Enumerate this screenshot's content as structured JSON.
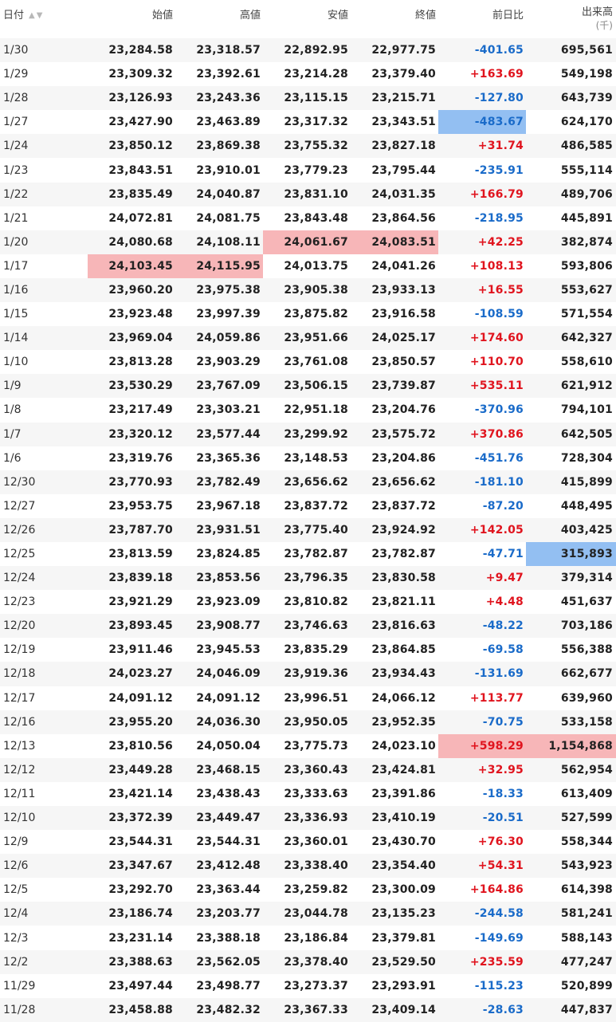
{
  "header": {
    "date": "日付",
    "open": "始値",
    "high": "高値",
    "low": "安値",
    "close": "終値",
    "change": "前日比",
    "volume": "出来高",
    "volume_unit": "(千)"
  },
  "colors": {
    "up": "#e0141e",
    "down": "#1a6bc9",
    "highlight_red": "#f7b6b8",
    "highlight_blue": "#93bff2"
  },
  "rows": [
    {
      "date": "1/30",
      "open": "23,284.58",
      "high": "23,318.57",
      "low": "22,892.95",
      "close": "22,977.75",
      "change": "-401.65",
      "volume": "695,561"
    },
    {
      "date": "1/29",
      "open": "23,309.32",
      "high": "23,392.61",
      "low": "23,214.28",
      "close": "23,379.40",
      "change": "+163.69",
      "volume": "549,198"
    },
    {
      "date": "1/28",
      "open": "23,126.93",
      "high": "23,243.36",
      "low": "23,115.15",
      "close": "23,215.71",
      "change": "-127.80",
      "volume": "643,739"
    },
    {
      "date": "1/27",
      "open": "23,427.90",
      "high": "23,463.89",
      "low": "23,317.32",
      "close": "23,343.51",
      "change": "-483.67",
      "volume": "624,170"
    },
    {
      "date": "1/24",
      "open": "23,850.12",
      "high": "23,869.38",
      "low": "23,755.32",
      "close": "23,827.18",
      "change": "+31.74",
      "volume": "486,585"
    },
    {
      "date": "1/23",
      "open": "23,843.51",
      "high": "23,910.01",
      "low": "23,779.23",
      "close": "23,795.44",
      "change": "-235.91",
      "volume": "555,114"
    },
    {
      "date": "1/22",
      "open": "23,835.49",
      "high": "24,040.87",
      "low": "23,831.10",
      "close": "24,031.35",
      "change": "+166.79",
      "volume": "489,706"
    },
    {
      "date": "1/21",
      "open": "24,072.81",
      "high": "24,081.75",
      "low": "23,843.48",
      "close": "23,864.56",
      "change": "-218.95",
      "volume": "445,891"
    },
    {
      "date": "1/20",
      "open": "24,080.68",
      "high": "24,108.11",
      "low": "24,061.67",
      "close": "24,083.51",
      "change": "+42.25",
      "volume": "382,874"
    },
    {
      "date": "1/17",
      "open": "24,103.45",
      "high": "24,115.95",
      "low": "24,013.75",
      "close": "24,041.26",
      "change": "+108.13",
      "volume": "593,806"
    },
    {
      "date": "1/16",
      "open": "23,960.20",
      "high": "23,975.38",
      "low": "23,905.38",
      "close": "23,933.13",
      "change": "+16.55",
      "volume": "553,627"
    },
    {
      "date": "1/15",
      "open": "23,923.48",
      "high": "23,997.39",
      "low": "23,875.82",
      "close": "23,916.58",
      "change": "-108.59",
      "volume": "571,554"
    },
    {
      "date": "1/14",
      "open": "23,969.04",
      "high": "24,059.86",
      "low": "23,951.66",
      "close": "24,025.17",
      "change": "+174.60",
      "volume": "642,327"
    },
    {
      "date": "1/10",
      "open": "23,813.28",
      "high": "23,903.29",
      "low": "23,761.08",
      "close": "23,850.57",
      "change": "+110.70",
      "volume": "558,610"
    },
    {
      "date": "1/9",
      "open": "23,530.29",
      "high": "23,767.09",
      "low": "23,506.15",
      "close": "23,739.87",
      "change": "+535.11",
      "volume": "621,912"
    },
    {
      "date": "1/8",
      "open": "23,217.49",
      "high": "23,303.21",
      "low": "22,951.18",
      "close": "23,204.76",
      "change": "-370.96",
      "volume": "794,101"
    },
    {
      "date": "1/7",
      "open": "23,320.12",
      "high": "23,577.44",
      "low": "23,299.92",
      "close": "23,575.72",
      "change": "+370.86",
      "volume": "642,505"
    },
    {
      "date": "1/6",
      "open": "23,319.76",
      "high": "23,365.36",
      "low": "23,148.53",
      "close": "23,204.86",
      "change": "-451.76",
      "volume": "728,304"
    },
    {
      "date": "12/30",
      "open": "23,770.93",
      "high": "23,782.49",
      "low": "23,656.62",
      "close": "23,656.62",
      "change": "-181.10",
      "volume": "415,899"
    },
    {
      "date": "12/27",
      "open": "23,953.75",
      "high": "23,967.18",
      "low": "23,837.72",
      "close": "23,837.72",
      "change": "-87.20",
      "volume": "448,495"
    },
    {
      "date": "12/26",
      "open": "23,787.70",
      "high": "23,931.51",
      "low": "23,775.40",
      "close": "23,924.92",
      "change": "+142.05",
      "volume": "403,425"
    },
    {
      "date": "12/25",
      "open": "23,813.59",
      "high": "23,824.85",
      "low": "23,782.87",
      "close": "23,782.87",
      "change": "-47.71",
      "volume": "315,893"
    },
    {
      "date": "12/24",
      "open": "23,839.18",
      "high": "23,853.56",
      "low": "23,796.35",
      "close": "23,830.58",
      "change": "+9.47",
      "volume": "379,314"
    },
    {
      "date": "12/23",
      "open": "23,921.29",
      "high": "23,923.09",
      "low": "23,810.82",
      "close": "23,821.11",
      "change": "+4.48",
      "volume": "451,637"
    },
    {
      "date": "12/20",
      "open": "23,893.45",
      "high": "23,908.77",
      "low": "23,746.63",
      "close": "23,816.63",
      "change": "-48.22",
      "volume": "703,186"
    },
    {
      "date": "12/19",
      "open": "23,911.46",
      "high": "23,945.53",
      "low": "23,835.29",
      "close": "23,864.85",
      "change": "-69.58",
      "volume": "556,388"
    },
    {
      "date": "12/18",
      "open": "24,023.27",
      "high": "24,046.09",
      "low": "23,919.36",
      "close": "23,934.43",
      "change": "-131.69",
      "volume": "662,677"
    },
    {
      "date": "12/17",
      "open": "24,091.12",
      "high": "24,091.12",
      "low": "23,996.51",
      "close": "24,066.12",
      "change": "+113.77",
      "volume": "639,960"
    },
    {
      "date": "12/16",
      "open": "23,955.20",
      "high": "24,036.30",
      "low": "23,950.05",
      "close": "23,952.35",
      "change": "-70.75",
      "volume": "533,158"
    },
    {
      "date": "12/13",
      "open": "23,810.56",
      "high": "24,050.04",
      "low": "23,775.73",
      "close": "24,023.10",
      "change": "+598.29",
      "volume": "1,154,868"
    },
    {
      "date": "12/12",
      "open": "23,449.28",
      "high": "23,468.15",
      "low": "23,360.43",
      "close": "23,424.81",
      "change": "+32.95",
      "volume": "562,954"
    },
    {
      "date": "12/11",
      "open": "23,421.14",
      "high": "23,438.43",
      "low": "23,333.63",
      "close": "23,391.86",
      "change": "-18.33",
      "volume": "613,409"
    },
    {
      "date": "12/10",
      "open": "23,372.39",
      "high": "23,449.47",
      "low": "23,336.93",
      "close": "23,410.19",
      "change": "-20.51",
      "volume": "527,599"
    },
    {
      "date": "12/9",
      "open": "23,544.31",
      "high": "23,544.31",
      "low": "23,360.01",
      "close": "23,430.70",
      "change": "+76.30",
      "volume": "558,344"
    },
    {
      "date": "12/6",
      "open": "23,347.67",
      "high": "23,412.48",
      "low": "23,338.40",
      "close": "23,354.40",
      "change": "+54.31",
      "volume": "543,923"
    },
    {
      "date": "12/5",
      "open": "23,292.70",
      "high": "23,363.44",
      "low": "23,259.82",
      "close": "23,300.09",
      "change": "+164.86",
      "volume": "614,398"
    },
    {
      "date": "12/4",
      "open": "23,186.74",
      "high": "23,203.77",
      "low": "23,044.78",
      "close": "23,135.23",
      "change": "-244.58",
      "volume": "581,241"
    },
    {
      "date": "12/3",
      "open": "23,231.14",
      "high": "23,388.18",
      "low": "23,186.84",
      "close": "23,379.81",
      "change": "-149.69",
      "volume": "588,143"
    },
    {
      "date": "12/2",
      "open": "23,388.63",
      "high": "23,562.05",
      "low": "23,378.40",
      "close": "23,529.50",
      "change": "+235.59",
      "volume": "477,247"
    },
    {
      "date": "11/29",
      "open": "23,497.44",
      "high": "23,498.77",
      "low": "23,273.37",
      "close": "23,293.91",
      "change": "-115.23",
      "volume": "520,899"
    },
    {
      "date": "11/28",
      "open": "23,458.88",
      "high": "23,482.32",
      "low": "23,367.33",
      "close": "23,409.14",
      "change": "-28.63",
      "volume": "447,837"
    }
  ],
  "highlights": {
    "red": [
      [
        8,
        "low"
      ],
      [
        8,
        "close"
      ],
      [
        9,
        "open"
      ],
      [
        9,
        "high"
      ],
      [
        29,
        "change"
      ],
      [
        29,
        "volume"
      ]
    ],
    "blue": [
      [
        3,
        "change"
      ],
      [
        21,
        "volume"
      ]
    ]
  }
}
